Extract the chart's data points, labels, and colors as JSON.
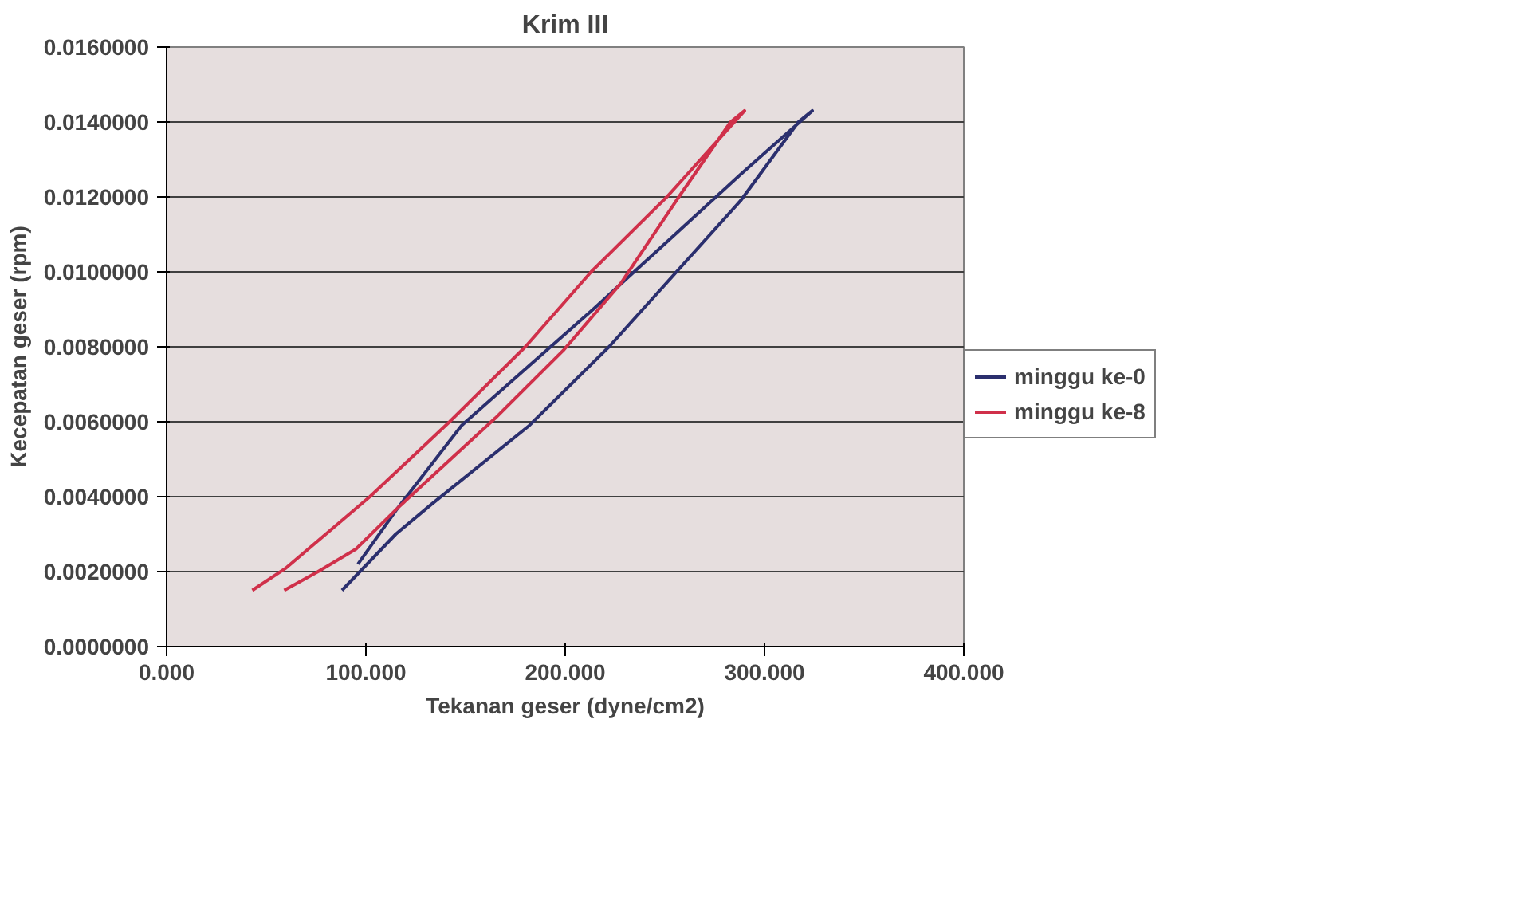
{
  "chart_data": {
    "type": "line",
    "title": "Krim III",
    "xlabel": "Tekanan geser (dyne/cm2)",
    "ylabel": "Kecepatan geser (rpm)",
    "xlim": [
      0,
      400
    ],
    "ylim": [
      0,
      0.016
    ],
    "xticks": [
      {
        "value": 0,
        "label": "0.000"
      },
      {
        "value": 100,
        "label": "100.000"
      },
      {
        "value": 200,
        "label": "200.000"
      },
      {
        "value": 300,
        "label": "300.000"
      },
      {
        "value": 400,
        "label": "400.000"
      }
    ],
    "yticks": [
      {
        "value": 0,
        "label": "0.0000000"
      },
      {
        "value": 0.002,
        "label": "0.0020000"
      },
      {
        "value": 0.004,
        "label": "0.0040000"
      },
      {
        "value": 0.006,
        "label": "0.0060000"
      },
      {
        "value": 0.008,
        "label": "0.0080000"
      },
      {
        "value": 0.01,
        "label": "0.0100000"
      },
      {
        "value": 0.012,
        "label": "0.0120000"
      },
      {
        "value": 0.014,
        "label": "0.0140000"
      },
      {
        "value": 0.016,
        "label": "0.0160000"
      }
    ],
    "grid": "y",
    "legend": "right",
    "marker": "none",
    "line_style": "solid",
    "series": [
      {
        "name": "minggu ke-0",
        "color": "#2b2f6e",
        "x": [
          88,
          115,
          133,
          182,
          222,
          288,
          317,
          324,
          288,
          251,
          214,
          182,
          148,
          116,
          96
        ],
        "values": [
          0.0015,
          0.003,
          0.0038,
          0.0059,
          0.008,
          0.0119,
          0.014,
          0.0143,
          0.0126,
          0.0108,
          0.009,
          0.0075,
          0.0059,
          0.0037,
          0.0022
        ]
      },
      {
        "name": "minggu ke-8",
        "color": "#d0304a",
        "x": [
          43,
          60,
          102,
          142,
          180,
          213,
          251,
          290,
          283,
          257,
          228,
          199,
          165,
          116,
          95,
          76,
          59
        ],
        "values": [
          0.0015,
          0.0021,
          0.004,
          0.006,
          0.008,
          0.01,
          0.012,
          0.0143,
          0.014,
          0.012,
          0.0097,
          0.0079,
          0.0061,
          0.0037,
          0.0026,
          0.002,
          0.0015
        ]
      }
    ]
  }
}
